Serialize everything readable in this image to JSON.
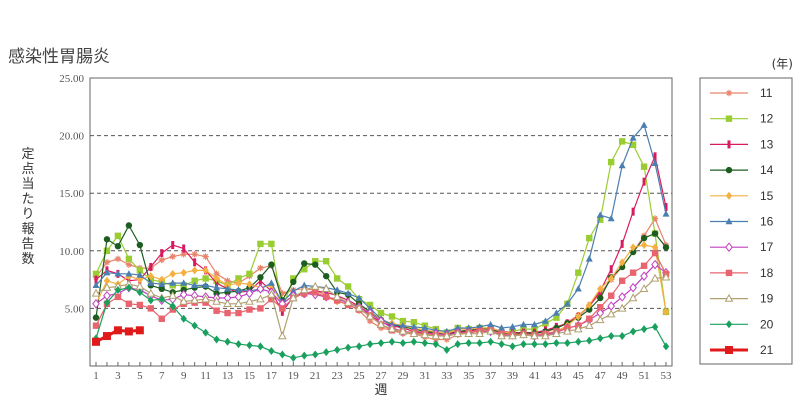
{
  "chart_data": {
    "type": "line",
    "title": "感染性胃腸炎",
    "xlabel": "週",
    "ylabel": "定点当たり報告数",
    "legend_title": "(年)",
    "legend_position": "right",
    "grid": true,
    "ylim": [
      0,
      25
    ],
    "yticks": [
      "25.00",
      "20.00",
      "15.00",
      "10.00",
      "5.00"
    ],
    "xlim": [
      1,
      53
    ],
    "xticks": [
      "1",
      "3",
      "5",
      "7",
      "9",
      "11",
      "13",
      "15",
      "17",
      "19",
      "21",
      "23",
      "25",
      "27",
      "29",
      "31",
      "33",
      "35",
      "37",
      "39",
      "41",
      "43",
      "45",
      "47",
      "49",
      "51",
      "53"
    ],
    "series": [
      {
        "name": "11",
        "color": "#e8836a",
        "marker": "star",
        "values": [
          7.7,
          9.0,
          9.3,
          8.8,
          8.5,
          8.5,
          9.2,
          9.5,
          9.7,
          9.7,
          9.5,
          8.0,
          7.4,
          7.2,
          7.8,
          8.5,
          8.7,
          6.3,
          6.6,
          6.7,
          6.6,
          6.1,
          5.6,
          5.4,
          4.8,
          3.9,
          3.3,
          3.1,
          2.8,
          2.8,
          2.5,
          2.3,
          2.3,
          2.7,
          2.9,
          3.1,
          3.2,
          2.9,
          2.9,
          2.8,
          2.6,
          2.9,
          3.3,
          3.8,
          4.4,
          5.2,
          6.3,
          7.5,
          8.6,
          9.9,
          11.3,
          12.8,
          10.5
        ]
      },
      {
        "name": "12",
        "color": "#9acd32",
        "marker": "square",
        "values": [
          8.0,
          10.0,
          11.3,
          9.3,
          8.3,
          7.5,
          7.3,
          7.0,
          7.0,
          7.4,
          7.6,
          7.4,
          7.0,
          7.6,
          8.0,
          10.6,
          10.6,
          5.0,
          7.6,
          8.4,
          9.1,
          9.1,
          7.6,
          6.9,
          5.8,
          5.3,
          4.6,
          4.3,
          3.9,
          3.8,
          3.5,
          3.2,
          2.9,
          3.3,
          3.2,
          3.3,
          3.3,
          2.8,
          3.0,
          3.2,
          3.2,
          3.7,
          4.2,
          5.4,
          8.1,
          11.1,
          12.7,
          17.7,
          19.5,
          19.2,
          17.3,
          11.5,
          4.7
        ]
      },
      {
        "name": "13",
        "color": "#d81b60",
        "marker": "bar",
        "values": [
          7.5,
          8.3,
          8.0,
          7.4,
          7.5,
          8.6,
          9.8,
          10.5,
          10.2,
          9.0,
          8.3,
          7.2,
          6.7,
          6.4,
          6.5,
          7.4,
          6.5,
          4.7,
          6.0,
          6.3,
          6.5,
          6.4,
          6.1,
          5.7,
          5.2,
          4.4,
          3.8,
          3.5,
          3.3,
          3.0,
          2.9,
          2.8,
          2.8,
          3.0,
          3.0,
          3.2,
          3.3,
          3.0,
          2.9,
          2.9,
          2.9,
          3.1,
          3.4,
          3.7,
          4.3,
          5.2,
          6.5,
          8.4,
          10.6,
          13.4,
          16.0,
          18.2,
          13.8
        ]
      },
      {
        "name": "14",
        "color": "#1b5e20",
        "marker": "circle",
        "values": [
          4.2,
          11.0,
          10.4,
          12.2,
          10.5,
          7.0,
          6.7,
          6.4,
          6.6,
          6.8,
          6.9,
          6.3,
          6.4,
          6.5,
          6.8,
          7.7,
          8.8,
          5.7,
          7.3,
          8.9,
          8.8,
          7.8,
          6.4,
          6.2,
          5.4,
          4.7,
          4.0,
          3.6,
          3.4,
          3.2,
          3.0,
          2.9,
          2.7,
          3.0,
          3.1,
          3.3,
          3.2,
          2.9,
          2.8,
          2.9,
          2.8,
          3.0,
          3.3,
          3.7,
          4.2,
          4.9,
          5.9,
          7.7,
          8.6,
          9.9,
          11.1,
          11.5,
          10.3
        ]
      },
      {
        "name": "15",
        "color": "#f5b041",
        "marker": "diamond",
        "values": [
          5.4,
          7.4,
          7.1,
          7.8,
          7.5,
          7.8,
          7.5,
          8.0,
          8.1,
          8.3,
          8.3,
          7.6,
          7.0,
          7.2,
          7.1,
          6.8,
          7.0,
          5.4,
          6.1,
          6.4,
          6.2,
          6.0,
          5.6,
          5.4,
          5.2,
          4.6,
          4.0,
          3.7,
          3.5,
          3.3,
          3.1,
          3.0,
          2.8,
          3.2,
          3.2,
          3.3,
          3.3,
          3.0,
          2.8,
          2.7,
          2.6,
          2.8,
          3.0,
          3.5,
          4.3,
          5.3,
          6.7,
          7.6,
          9.0,
          10.3,
          10.5,
          10.3,
          4.7
        ]
      },
      {
        "name": "16",
        "color": "#4a7fb0",
        "marker": "triangle",
        "values": [
          7.0,
          8.1,
          8.0,
          8.0,
          7.9,
          7.2,
          7.1,
          7.2,
          7.2,
          7.0,
          7.0,
          6.8,
          6.7,
          6.6,
          6.5,
          6.7,
          7.2,
          5.5,
          6.5,
          7.0,
          6.9,
          6.8,
          6.6,
          6.3,
          5.9,
          5.0,
          4.1,
          3.6,
          3.5,
          3.4,
          3.3,
          3.1,
          3.0,
          3.3,
          3.3,
          3.4,
          3.6,
          3.3,
          3.4,
          3.6,
          3.6,
          3.9,
          4.6,
          5.4,
          6.7,
          9.3,
          13.1,
          12.8,
          17.4,
          19.8,
          20.9,
          17.6,
          13.2
        ]
      },
      {
        "name": "17",
        "color": "#c040c0",
        "marker": "diamond-open",
        "values": [
          5.4,
          6.1,
          6.3,
          6.8,
          6.6,
          6.1,
          5.7,
          5.8,
          6.2,
          6.1,
          6.0,
          5.9,
          5.9,
          6.0,
          6.3,
          6.7,
          6.4,
          5.4,
          6.1,
          6.3,
          6.2,
          6.0,
          5.8,
          5.5,
          5.1,
          4.6,
          3.9,
          3.3,
          3.0,
          2.9,
          2.8,
          2.8,
          2.7,
          2.9,
          2.9,
          3.0,
          3.0,
          2.7,
          2.7,
          2.8,
          2.6,
          2.7,
          2.9,
          3.3,
          3.5,
          4.0,
          4.6,
          5.2,
          6.0,
          6.8,
          7.8,
          8.8,
          8.1
        ]
      },
      {
        "name": "18",
        "color": "#e8646e",
        "marker": "square",
        "values": [
          3.5,
          5.4,
          6.0,
          5.4,
          5.3,
          5.0,
          4.1,
          4.9,
          5.4,
          5.5,
          5.5,
          4.8,
          4.6,
          4.6,
          4.9,
          5.0,
          5.8,
          5.0,
          5.9,
          6.3,
          6.4,
          6.0,
          5.7,
          5.3,
          4.9,
          4.4,
          3.6,
          3.1,
          3.0,
          2.9,
          2.8,
          2.7,
          2.6,
          2.8,
          2.9,
          3.0,
          3.1,
          2.8,
          2.7,
          2.8,
          2.7,
          2.8,
          3.0,
          3.3,
          3.5,
          4.1,
          5.1,
          6.1,
          7.4,
          8.1,
          8.7,
          9.8,
          8.0
        ]
      },
      {
        "name": "19",
        "color": "#b0a070",
        "marker": "triangle-open",
        "values": [
          6.3,
          6.8,
          6.9,
          7.1,
          6.9,
          6.3,
          5.9,
          6.1,
          5.6,
          5.7,
          5.8,
          5.6,
          5.4,
          5.4,
          5.6,
          5.8,
          6.2,
          2.6,
          5.9,
          6.6,
          6.9,
          6.7,
          6.0,
          5.5,
          5.0,
          4.3,
          3.6,
          3.2,
          3.0,
          2.8,
          2.7,
          2.6,
          2.6,
          2.8,
          2.8,
          2.8,
          3.0,
          2.6,
          2.6,
          2.7,
          2.6,
          2.6,
          2.8,
          3.0,
          3.2,
          3.5,
          4.0,
          4.5,
          5.0,
          5.9,
          6.7,
          7.6,
          7.7
        ]
      },
      {
        "name": "20",
        "color": "#1aa05e",
        "marker": "diamond",
        "values": [
          2.4,
          5.5,
          6.6,
          6.8,
          6.4,
          5.7,
          5.8,
          5.2,
          4.1,
          3.5,
          2.9,
          2.3,
          2.1,
          1.9,
          1.8,
          1.7,
          1.3,
          1.0,
          0.7,
          0.9,
          1.0,
          1.2,
          1.4,
          1.6,
          1.7,
          1.9,
          2.0,
          2.1,
          2.0,
          2.1,
          2.0,
          1.9,
          1.4,
          1.9,
          2.0,
          2.0,
          2.1,
          1.9,
          1.7,
          1.9,
          1.9,
          1.9,
          2.0,
          2.0,
          2.1,
          2.2,
          2.4,
          2.6,
          2.6,
          3.0,
          3.2,
          3.4,
          1.7
        ]
      },
      {
        "name": "21",
        "color": "#e01a1a",
        "marker": "square-bold",
        "values": [
          2.1,
          2.6,
          3.1,
          3.0,
          3.1
        ]
      }
    ]
  }
}
